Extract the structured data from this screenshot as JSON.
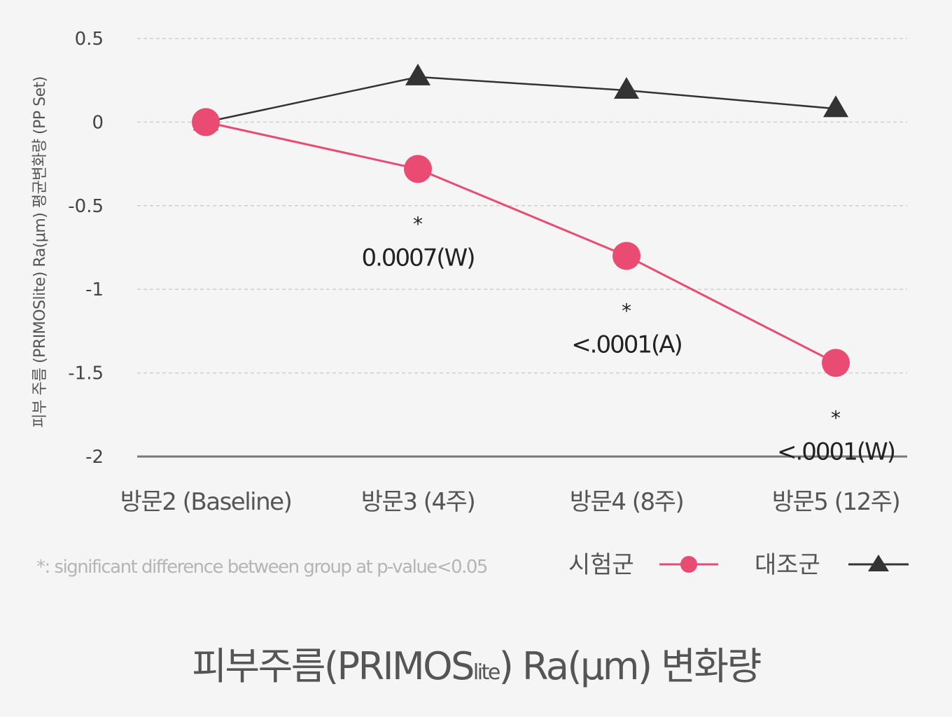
{
  "chart_data": {
    "type": "line",
    "title_main": "피부주름(PRIMOS",
    "title_sub": "lite",
    "title_rest": ") Ra(μm) 변화량",
    "ylabel": "피부 주름 (PRIMOSlite) Ra(μm) 평균변화량 (PP Set)",
    "categories": [
      "방문2 (Baseline)",
      "방문3 (4주)",
      "방문4 (8주)",
      "방문5 (12주)"
    ],
    "yticks": [
      "0.5",
      "0",
      "-0.5",
      "-1",
      "-1.5",
      "-2"
    ],
    "ylim": [
      -2,
      0.5
    ],
    "grid": true,
    "series": [
      {
        "name": "시험군",
        "marker": "circle",
        "color": "#e94b72",
        "values": [
          0,
          -0.28,
          -0.8,
          -1.44
        ]
      },
      {
        "name": "대조군",
        "marker": "triangle",
        "color": "#333333",
        "values": [
          0,
          0.27,
          0.19,
          0.08
        ]
      }
    ],
    "annotations": [
      {
        "category_index": 1,
        "star": "*",
        "text": "0.0007(W)"
      },
      {
        "category_index": 2,
        "star": "*",
        "text": "<.0001(A)"
      },
      {
        "category_index": 3,
        "star": "*",
        "text": "<.0001(W)"
      }
    ],
    "footnote": "*: significant difference between group at p-value<0.05",
    "legend_placement": "bottom-right"
  }
}
